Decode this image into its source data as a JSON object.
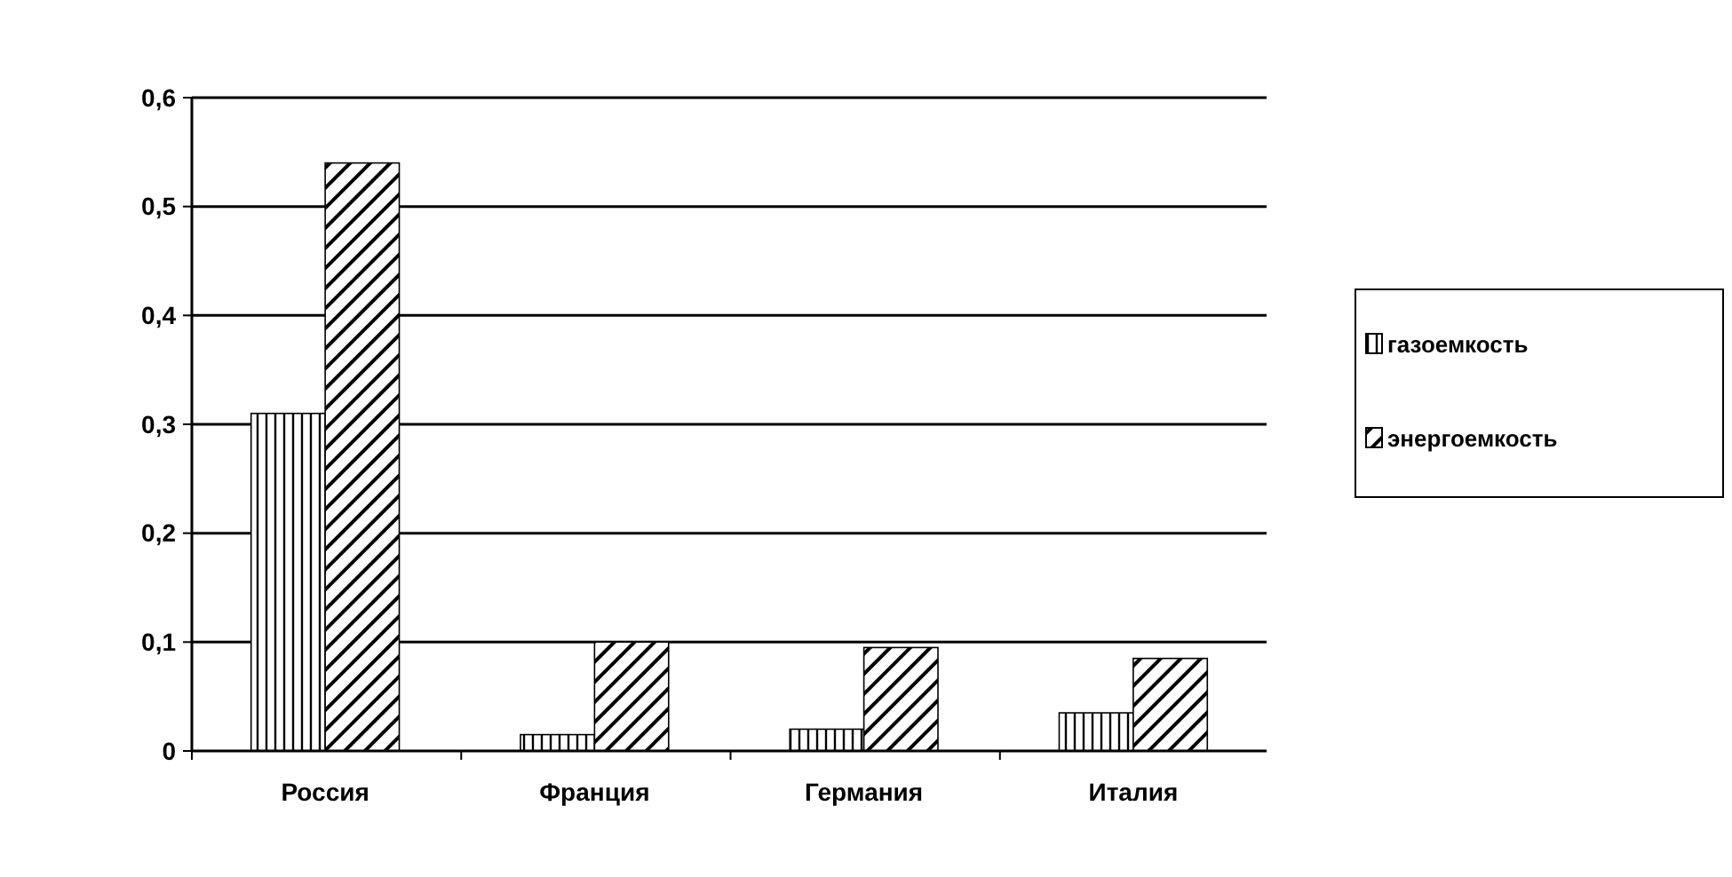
{
  "chart_data": {
    "type": "bar",
    "categories": [
      "Россия",
      "Франция",
      "Германия",
      "Италия"
    ],
    "series": [
      {
        "name": "газоемкость",
        "color": "#000000",
        "values": [
          0.31,
          0.015,
          0.02,
          0.035
        ]
      },
      {
        "name": "энергоемкость",
        "color": "#000000",
        "values": [
          0.54,
          0.1,
          0.095,
          0.085
        ]
      }
    ],
    "ylim": [
      0,
      0.6
    ],
    "yticks": [
      {
        "value": 0,
        "label": "0"
      },
      {
        "value": 0.1,
        "label": "0,1"
      },
      {
        "value": 0.2,
        "label": "0,2"
      },
      {
        "value": 0.3,
        "label": "0,3"
      },
      {
        "value": 0.4,
        "label": "0,4"
      },
      {
        "value": 0.5,
        "label": "0,5"
      },
      {
        "value": 0.6,
        "label": "0,6"
      }
    ],
    "grid": "y",
    "legend": "right"
  }
}
